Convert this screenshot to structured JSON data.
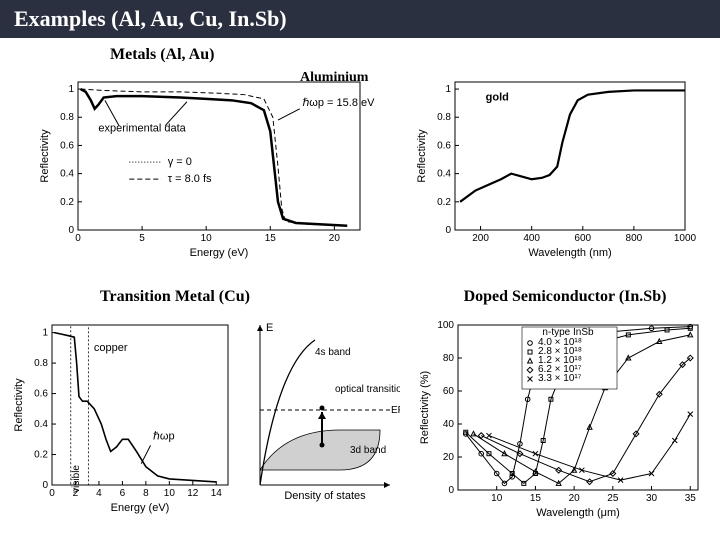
{
  "title": "Examples (Al, Au, Cu, In.Sb)",
  "sections": {
    "metals_heading": "Metals (Al, Au)",
    "transition_heading": "Transition Metal (Cu)",
    "doped_heading": "Doped Semiconductor (In.Sb)"
  },
  "aluminium": {
    "type": "line",
    "label": "Aluminium",
    "xlabel": "Energy (eV)",
    "ylabel": "Reflectivity",
    "xlim": [
      0,
      22
    ],
    "ylim": [
      0,
      1.05
    ],
    "xticks": [
      0,
      5,
      10,
      15,
      20
    ],
    "yticks": [
      0,
      0.2,
      0.4,
      0.6,
      0.8,
      1.0
    ],
    "annot": {
      "exp": "experimental data",
      "gamma": "γ = 0",
      "tau": "τ  =  8.0 fs",
      "hwp": "ℏωp = 15.8 eV"
    },
    "colors": {
      "line": "#000000",
      "bg": "#ffffff"
    },
    "series_main": [
      [
        0.2,
        1.0
      ],
      [
        0.6,
        0.98
      ],
      [
        1.0,
        0.92
      ],
      [
        1.3,
        0.86
      ],
      [
        1.6,
        0.89
      ],
      [
        2.0,
        0.94
      ],
      [
        3,
        0.95
      ],
      [
        5,
        0.95
      ],
      [
        8,
        0.94
      ],
      [
        10,
        0.93
      ],
      [
        12,
        0.92
      ],
      [
        13.5,
        0.9
      ],
      [
        14.5,
        0.85
      ],
      [
        15.0,
        0.7
      ],
      [
        15.3,
        0.45
      ],
      [
        15.6,
        0.2
      ],
      [
        16,
        0.08
      ],
      [
        17,
        0.05
      ],
      [
        19,
        0.04
      ],
      [
        21,
        0.03
      ]
    ],
    "series_model": [
      [
        0.2,
        1.0
      ],
      [
        2,
        0.99
      ],
      [
        5,
        0.98
      ],
      [
        8,
        0.98
      ],
      [
        11,
        0.97
      ],
      [
        13,
        0.96
      ],
      [
        14.5,
        0.93
      ],
      [
        15.2,
        0.8
      ],
      [
        15.6,
        0.45
      ],
      [
        15.9,
        0.15
      ],
      [
        16.2,
        0.06
      ],
      [
        18,
        0.04
      ],
      [
        21,
        0.03
      ]
    ]
  },
  "gold": {
    "type": "line",
    "label": "gold",
    "xlabel": "Wavelength (nm)",
    "ylabel": "Reflectivity",
    "xlim": [
      100,
      1000
    ],
    "ylim": [
      0,
      1.05
    ],
    "xticks": [
      200,
      400,
      600,
      800,
      1000
    ],
    "yticks": [
      0,
      0.2,
      0.4,
      0.6,
      0.8,
      1.0
    ],
    "colors": {
      "line": "#000000"
    },
    "series": [
      [
        120,
        0.2
      ],
      [
        180,
        0.28
      ],
      [
        230,
        0.32
      ],
      [
        280,
        0.36
      ],
      [
        320,
        0.4
      ],
      [
        360,
        0.38
      ],
      [
        400,
        0.36
      ],
      [
        440,
        0.37
      ],
      [
        470,
        0.39
      ],
      [
        500,
        0.45
      ],
      [
        520,
        0.62
      ],
      [
        550,
        0.82
      ],
      [
        580,
        0.92
      ],
      [
        620,
        0.96
      ],
      [
        700,
        0.98
      ],
      [
        800,
        0.99
      ],
      [
        900,
        0.99
      ],
      [
        1000,
        0.99
      ]
    ]
  },
  "copper": {
    "type": "line",
    "label": "copper",
    "xlabel": "Energy (eV)",
    "ylabel": "Reflectivity",
    "xlim": [
      0,
      15
    ],
    "ylim": [
      0,
      1.05
    ],
    "xticks": [
      0,
      2,
      4,
      6,
      8,
      10,
      12,
      14
    ],
    "yticks": [
      0,
      0.2,
      0.4,
      0.6,
      0.8,
      1.0
    ],
    "annot": {
      "visible": "visible",
      "hwp": "ℏωp"
    },
    "colors": {
      "line": "#000000",
      "band_fill": "#d0d0d0"
    },
    "series": [
      [
        0.2,
        1.0
      ],
      [
        0.8,
        0.99
      ],
      [
        1.4,
        0.98
      ],
      [
        1.9,
        0.97
      ],
      [
        2.1,
        0.8
      ],
      [
        2.3,
        0.58
      ],
      [
        2.6,
        0.55
      ],
      [
        3.0,
        0.55
      ],
      [
        3.6,
        0.5
      ],
      [
        4.2,
        0.4
      ],
      [
        4.6,
        0.3
      ],
      [
        5.0,
        0.22
      ],
      [
        5.5,
        0.25
      ],
      [
        6.0,
        0.3
      ],
      [
        6.5,
        0.3
      ],
      [
        7.2,
        0.22
      ],
      [
        8.0,
        0.12
      ],
      [
        9.0,
        0.06
      ],
      [
        10,
        0.04
      ],
      [
        12,
        0.03
      ],
      [
        14,
        0.02
      ]
    ],
    "band_diagram": {
      "E_label": "E",
      "EF_label": "EF",
      "s_band": "4s band",
      "d_band": "3d band",
      "transitions": "optical transitions",
      "dos_label": "Density of states"
    }
  },
  "insb": {
    "type": "line",
    "xlabel": "Wavelength (μm)",
    "ylabel": "Reflectivity (%)",
    "xlim": [
      5,
      36
    ],
    "ylim": [
      0,
      100
    ],
    "xticks": [
      10,
      15,
      20,
      25,
      30,
      35
    ],
    "yticks": [
      0,
      20,
      40,
      60,
      80,
      100
    ],
    "legend_title": "n-type InSb",
    "legend": [
      "4.0 × 10¹⁸",
      "2.8 × 10¹⁸",
      "1.2 × 10¹⁸",
      "6.2 × 10¹⁷",
      "3.3 × 10¹⁷"
    ],
    "colors": {
      "line": "#000000"
    },
    "series": {
      "a": [
        [
          6,
          34
        ],
        [
          8,
          22
        ],
        [
          10,
          10
        ],
        [
          11,
          4
        ],
        [
          12,
          8
        ],
        [
          13,
          28
        ],
        [
          14,
          55
        ],
        [
          15,
          74
        ],
        [
          17,
          86
        ],
        [
          20,
          93
        ],
        [
          25,
          96
        ],
        [
          30,
          98
        ],
        [
          35,
          99
        ]
      ],
      "b": [
        [
          6,
          35
        ],
        [
          9,
          22
        ],
        [
          12,
          10
        ],
        [
          13.5,
          4
        ],
        [
          15,
          10
        ],
        [
          16,
          30
        ],
        [
          17,
          55
        ],
        [
          19,
          78
        ],
        [
          22,
          88
        ],
        [
          27,
          94
        ],
        [
          32,
          97
        ],
        [
          35,
          98
        ]
      ],
      "c": [
        [
          7,
          34
        ],
        [
          11,
          22
        ],
        [
          15,
          11
        ],
        [
          18,
          4
        ],
        [
          20,
          12
        ],
        [
          22,
          38
        ],
        [
          24,
          62
        ],
        [
          27,
          80
        ],
        [
          31,
          90
        ],
        [
          35,
          94
        ]
      ],
      "d": [
        [
          8,
          33
        ],
        [
          13,
          22
        ],
        [
          18,
          12
        ],
        [
          22,
          5
        ],
        [
          25,
          10
        ],
        [
          28,
          34
        ],
        [
          31,
          58
        ],
        [
          34,
          76
        ],
        [
          35,
          80
        ]
      ],
      "e": [
        [
          9,
          33
        ],
        [
          15,
          22
        ],
        [
          21,
          12
        ],
        [
          26,
          6
        ],
        [
          30,
          10
        ],
        [
          33,
          30
        ],
        [
          35,
          46
        ]
      ]
    },
    "markers": [
      "circle",
      "square",
      "triangle",
      "diamond",
      "x"
    ]
  }
}
